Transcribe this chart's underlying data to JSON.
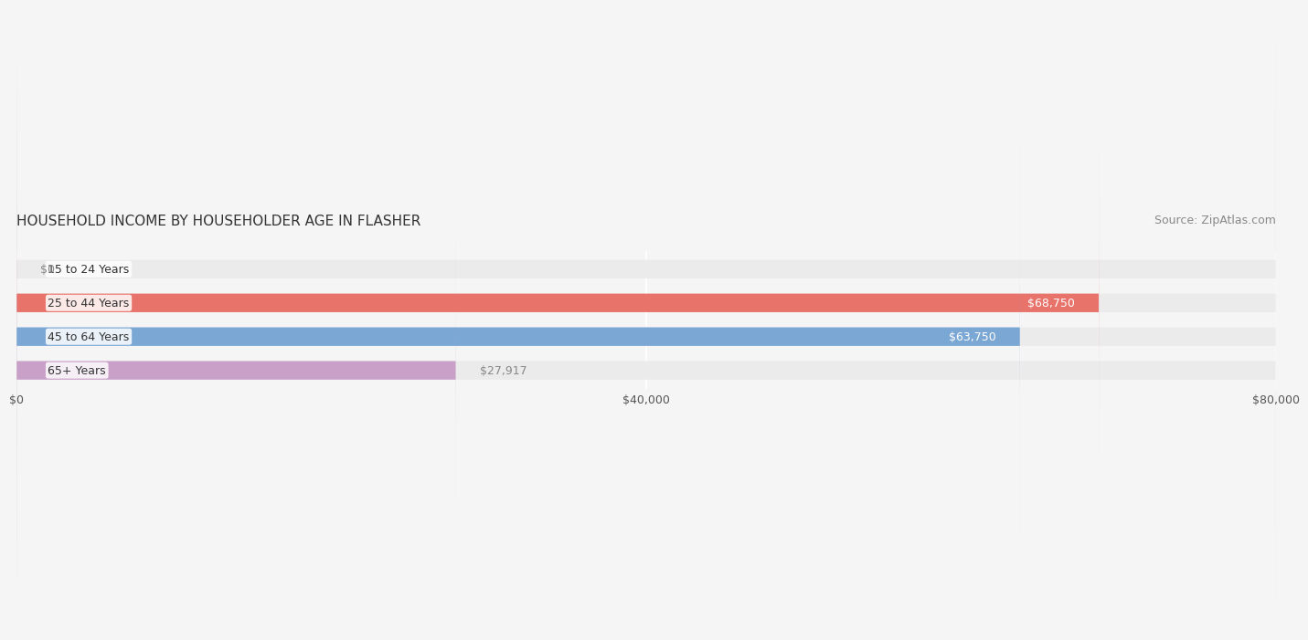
{
  "title": "HOUSEHOLD INCOME BY HOUSEHOLDER AGE IN FLASHER",
  "source": "Source: ZipAtlas.com",
  "categories": [
    "15 to 24 Years",
    "25 to 44 Years",
    "45 to 64 Years",
    "65+ Years"
  ],
  "values": [
    0,
    68750,
    63750,
    27917
  ],
  "bar_colors": [
    "#f0c88a",
    "#e8736a",
    "#7ba7d4",
    "#c9a0c8"
  ],
  "bar_bg_color": "#ebebeb",
  "xlim": [
    0,
    80000
  ],
  "xticks": [
    0,
    40000,
    80000
  ],
  "xtick_labels": [
    "$0",
    "$40,000",
    "$80,000"
  ],
  "value_labels": [
    "$0",
    "$68,750",
    "$63,750",
    "$27,917"
  ],
  "label_colors": [
    "#888888",
    "#ffffff",
    "#ffffff",
    "#888888"
  ],
  "title_fontsize": 11,
  "source_fontsize": 9,
  "tick_fontsize": 9,
  "bar_label_fontsize": 9,
  "category_fontsize": 9,
  "background_color": "#f5f5f5",
  "bar_bg_alpha": 1.0,
  "bar_height": 0.55,
  "grid_color": "#ffffff",
  "label_inside_threshold": 40000
}
